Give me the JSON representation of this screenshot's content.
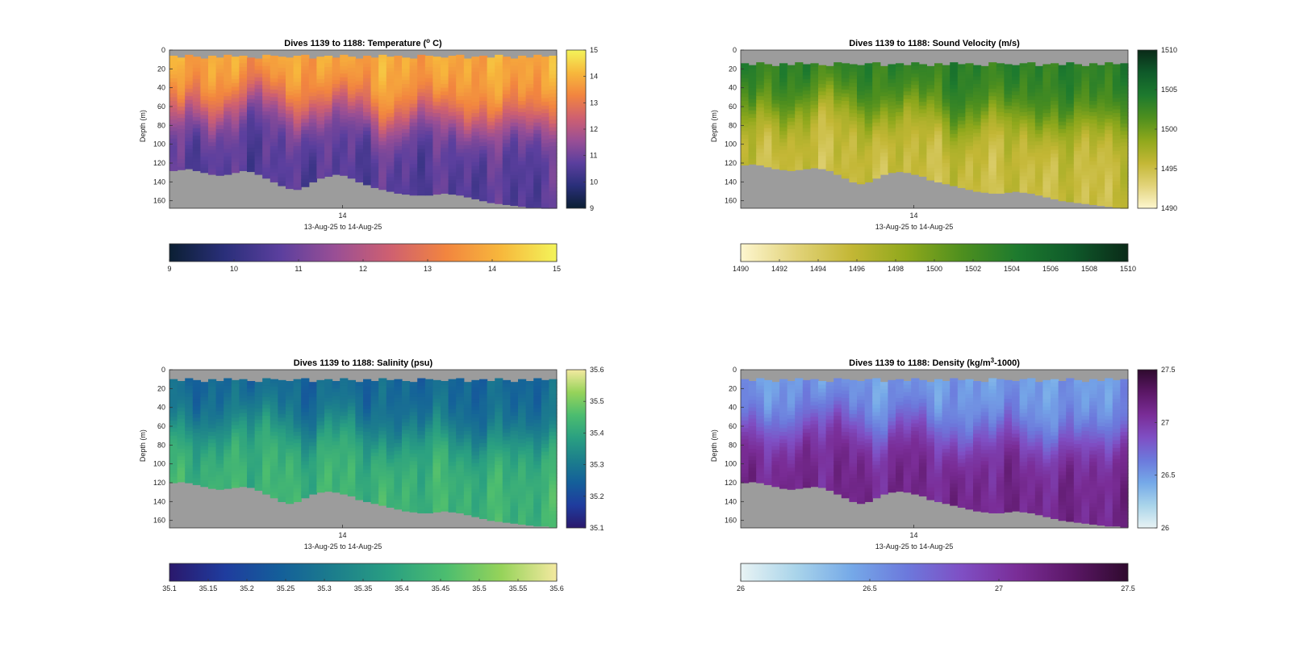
{
  "chart_data": [
    {
      "type": "heatmap",
      "id": "temperature",
      "title": "Dives 1139 to 1188: Temperature (",
      "title_sup": "o",
      "title_after": " C)",
      "xlabel": "13-Aug-25 to 14-Aug-25",
      "ylabel": "Depth (m)",
      "x_tick_labels": [
        "14"
      ],
      "y_ticks": [
        0,
        20,
        40,
        60,
        80,
        100,
        120,
        140,
        160
      ],
      "ylim": [
        0,
        168
      ],
      "clim": [
        9,
        15
      ],
      "colorbar_side_ticks": [
        9,
        10,
        11,
        12,
        13,
        14,
        15
      ],
      "colorbar_bottom_ticks": [
        9,
        10,
        11,
        12,
        13,
        14,
        15
      ],
      "colormap": [
        "#0b1f33",
        "#2a2f7a",
        "#5b3f9e",
        "#9a4f95",
        "#cf6070",
        "#f2853f",
        "#f7b83c",
        "#f3f45a"
      ],
      "surface_value": 13.9,
      "deep_value": 10.6,
      "mixed_layer_depth_m": [
        58,
        60,
        55,
        62,
        65,
        70,
        68,
        60,
        55,
        50,
        45,
        40,
        42,
        48,
        55,
        62,
        70,
        72,
        68,
        60,
        55,
        50,
        48,
        52,
        58,
        65,
        72,
        78,
        80,
        76,
        70,
        65,
        62,
        60,
        58,
        62,
        68,
        74,
        78,
        80,
        78,
        75,
        72,
        70,
        68,
        70,
        72,
        74,
        72,
        70
      ],
      "bottom_depth_m": [
        128,
        127,
        126,
        128,
        130,
        132,
        133,
        132,
        130,
        128,
        129,
        132,
        136,
        140,
        144,
        147,
        148,
        145,
        140,
        136,
        134,
        132,
        133,
        136,
        140,
        143,
        146,
        148,
        150,
        152,
        153,
        154,
        154,
        154,
        153,
        152,
        153,
        154,
        156,
        158,
        160,
        162,
        163,
        164,
        165,
        166,
        167,
        167,
        168,
        168
      ],
      "surface_gap_m": [
        6,
        8,
        5,
        7,
        9,
        6,
        8,
        5,
        7,
        6,
        8,
        9,
        5,
        6,
        7,
        8,
        6,
        5,
        9,
        7,
        6,
        8,
        5,
        7,
        9,
        6,
        8,
        5,
        7,
        6,
        8,
        9,
        5,
        6,
        7,
        8,
        6,
        5,
        9,
        7,
        6,
        8,
        5,
        7,
        9,
        6,
        8,
        5,
        7,
        6
      ]
    },
    {
      "type": "heatmap",
      "id": "sound-velocity",
      "title": "Dives 1139 to 1188: Sound Velocity (m/s)",
      "xlabel": "13-Aug-25 to 14-Aug-25",
      "ylabel": "Depth (m)",
      "x_tick_labels": [
        "14"
      ],
      "y_ticks": [
        0,
        20,
        40,
        60,
        80,
        100,
        120,
        140,
        160
      ],
      "ylim": [
        0,
        168
      ],
      "clim": [
        1490,
        1510
      ],
      "colorbar_side_ticks": [
        1490,
        1495,
        1500,
        1505,
        1510
      ],
      "colorbar_bottom_ticks": [
        1490,
        1492,
        1494,
        1496,
        1498,
        1500,
        1502,
        1504,
        1506,
        1508,
        1510
      ],
      "colormap": [
        "#fdf6cf",
        "#e2d37a",
        "#c3b735",
        "#8fa81c",
        "#4e8f1e",
        "#1d7a2e",
        "#0f5a2a",
        "#0a2a18"
      ],
      "surface_value": 1503.5,
      "deep_value": 1495.2,
      "mixed_layer_depth_m": [
        58,
        60,
        55,
        62,
        65,
        70,
        68,
        60,
        55,
        50,
        45,
        40,
        42,
        48,
        55,
        62,
        70,
        72,
        68,
        60,
        55,
        50,
        48,
        52,
        58,
        65,
        72,
        78,
        80,
        76,
        70,
        65,
        62,
        60,
        58,
        62,
        68,
        74,
        78,
        80,
        78,
        75,
        72,
        70,
        68,
        70,
        72,
        74,
        72,
        70
      ],
      "bottom_depth_m": [
        122,
        121,
        122,
        124,
        126,
        127,
        128,
        127,
        126,
        125,
        126,
        128,
        132,
        136,
        140,
        142,
        140,
        136,
        132,
        130,
        129,
        130,
        132,
        134,
        138,
        140,
        142,
        144,
        146,
        148,
        150,
        151,
        152,
        152,
        151,
        150,
        151,
        152,
        154,
        156,
        158,
        160,
        161,
        162,
        163,
        164,
        165,
        166,
        167,
        168
      ],
      "surface_gap_m": [
        14,
        16,
        13,
        15,
        17,
        14,
        16,
        13,
        15,
        14,
        16,
        17,
        13,
        14,
        15,
        16,
        14,
        13,
        17,
        15,
        14,
        16,
        13,
        15,
        17,
        14,
        16,
        13,
        15,
        14,
        16,
        17,
        13,
        14,
        15,
        16,
        14,
        13,
        17,
        15,
        14,
        16,
        13,
        15,
        17,
        14,
        16,
        13,
        15,
        14
      ]
    },
    {
      "type": "heatmap",
      "id": "salinity",
      "title": "Dives 1139 to 1188: Salinity (psu)",
      "xlabel": "13-Aug-25 to 14-Aug-25",
      "ylabel": "Depth (m)",
      "x_tick_labels": [
        "14"
      ],
      "y_ticks": [
        0,
        20,
        40,
        60,
        80,
        100,
        120,
        140,
        160
      ],
      "ylim": [
        0,
        168
      ],
      "clim": [
        35.1,
        35.6
      ],
      "colorbar_side_ticks": [
        35.1,
        35.2,
        35.3,
        35.4,
        35.5,
        35.6
      ],
      "colorbar_bottom_ticks": [
        "35.1",
        "35.15",
        "35.2",
        "35.25",
        "35.3",
        "35.35",
        "35.4",
        "35.45",
        "35.5",
        "35.55",
        "35.6"
      ],
      "colormap": [
        "#2a186c",
        "#1f3c9e",
        "#145f9a",
        "#1c7f8c",
        "#2aa081",
        "#4cbd6f",
        "#96d35a",
        "#f4e9a0"
      ],
      "surface_value": 35.26,
      "deep_value": 35.43,
      "mixed_layer_depth_m": [
        58,
        60,
        55,
        62,
        65,
        70,
        68,
        60,
        55,
        50,
        45,
        40,
        42,
        48,
        55,
        62,
        70,
        72,
        68,
        60,
        55,
        50,
        48,
        52,
        58,
        65,
        72,
        78,
        80,
        76,
        70,
        65,
        62,
        60,
        58,
        62,
        68,
        74,
        78,
        80,
        78,
        75,
        72,
        70,
        68,
        70,
        72,
        74,
        72,
        70
      ],
      "bottom_depth_m": [
        120,
        119,
        120,
        122,
        124,
        126,
        127,
        126,
        125,
        124,
        125,
        128,
        132,
        136,
        140,
        142,
        140,
        136,
        132,
        130,
        129,
        130,
        132,
        134,
        138,
        140,
        142,
        144,
        146,
        148,
        150,
        151,
        152,
        152,
        151,
        150,
        151,
        152,
        154,
        156,
        158,
        160,
        161,
        162,
        163,
        164,
        165,
        166,
        166,
        167
      ],
      "surface_gap_m": [
        10,
        12,
        9,
        11,
        13,
        10,
        12,
        9,
        11,
        10,
        12,
        13,
        9,
        10,
        11,
        12,
        10,
        9,
        13,
        11,
        10,
        12,
        9,
        11,
        13,
        10,
        12,
        9,
        11,
        10,
        12,
        13,
        9,
        10,
        11,
        12,
        10,
        9,
        13,
        11,
        10,
        12,
        9,
        11,
        13,
        10,
        12,
        9,
        11,
        10
      ]
    },
    {
      "type": "heatmap",
      "id": "density",
      "title": "Dives 1139 to 1188: Density (kg/m",
      "title_sup": "3",
      "title_after": "-1000)",
      "xlabel": "13-Aug-25 to 14-Aug-25",
      "ylabel": "Depth (m)",
      "x_tick_labels": [
        "14"
      ],
      "y_ticks": [
        0,
        20,
        40,
        60,
        80,
        100,
        120,
        140,
        160
      ],
      "ylim": [
        0,
        168
      ],
      "clim": [
        26,
        27.5
      ],
      "colorbar_side_ticks": [
        26,
        26.5,
        27,
        27.5
      ],
      "colorbar_bottom_ticks": [
        26,
        26.5,
        27,
        27.5
      ],
      "colormap": [
        "#e8f3f4",
        "#a9d4ea",
        "#75a9e8",
        "#6c79dc",
        "#7f4fc4",
        "#7a2d97",
        "#5b1766",
        "#2f0a2e"
      ],
      "surface_value": 26.48,
      "deep_value": 27.12,
      "mixed_layer_depth_m": [
        58,
        60,
        55,
        62,
        65,
        70,
        68,
        60,
        55,
        50,
        45,
        40,
        42,
        48,
        55,
        62,
        70,
        72,
        68,
        60,
        55,
        50,
        48,
        52,
        58,
        65,
        72,
        78,
        80,
        76,
        70,
        65,
        62,
        60,
        58,
        62,
        68,
        74,
        78,
        80,
        78,
        75,
        72,
        70,
        68,
        70,
        72,
        74,
        72,
        70
      ],
      "bottom_depth_m": [
        120,
        119,
        120,
        122,
        124,
        126,
        127,
        126,
        125,
        124,
        125,
        128,
        132,
        136,
        140,
        142,
        140,
        136,
        132,
        130,
        129,
        130,
        132,
        134,
        138,
        140,
        142,
        144,
        146,
        148,
        150,
        151,
        152,
        152,
        151,
        150,
        151,
        152,
        154,
        156,
        158,
        160,
        161,
        162,
        163,
        164,
        165,
        166,
        166,
        167
      ],
      "surface_gap_m": [
        10,
        12,
        9,
        11,
        13,
        10,
        12,
        9,
        11,
        10,
        12,
        13,
        9,
        10,
        11,
        12,
        10,
        9,
        13,
        11,
        10,
        12,
        9,
        11,
        13,
        10,
        12,
        9,
        11,
        10,
        12,
        13,
        9,
        10,
        11,
        12,
        10,
        9,
        13,
        11,
        10,
        12,
        9,
        11,
        13,
        10,
        12,
        9,
        11,
        10
      ]
    }
  ],
  "colors": {
    "no_data_gray": "#9c9c9c",
    "axis": "#333333",
    "background": "#ffffff"
  }
}
